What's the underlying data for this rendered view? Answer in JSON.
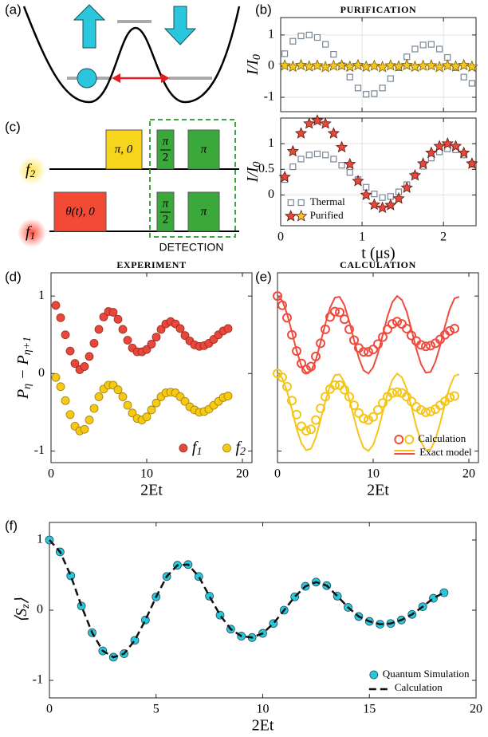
{
  "diagram_a": {
    "label": "(a)"
  },
  "diagram_c": {
    "label": "(c)",
    "rows": [
      {
        "name": [
          "f",
          "2"
        ],
        "pulses": [
          {
            "text": "π, 0"
          },
          {
            "text": {
              "num": "π",
              "den": "2"
            }
          },
          {
            "text": "π"
          }
        ]
      },
      {
        "name": [
          "f",
          "1"
        ],
        "pulses": [
          {
            "text": "θ(t), 0"
          },
          {
            "text": {
              "num": "π",
              "den": "2"
            }
          },
          {
            "text": "π"
          }
        ]
      }
    ],
    "detection": "DETECTION"
  },
  "chart_data": [
    {
      "type": "scatter",
      "panel": "(b)",
      "title": "PURIFICATION",
      "ylabel": [
        "I/I",
        "0"
      ],
      "x": [
        0.05,
        0.15,
        0.25,
        0.35,
        0.45,
        0.55,
        0.65,
        0.75,
        0.85,
        0.95,
        1.05,
        1.15,
        1.25,
        1.35,
        1.45,
        1.55,
        1.65,
        1.75,
        1.85,
        1.95,
        2.05,
        2.15,
        2.25,
        2.35
      ],
      "series": [
        {
          "name": "Thermal",
          "marker": "square",
          "color": "#7a8594",
          "values": [
            0.4,
            0.8,
            0.97,
            1.0,
            0.92,
            0.7,
            0.38,
            0.02,
            -0.35,
            -0.7,
            -0.9,
            -0.88,
            -0.7,
            -0.4,
            -0.05,
            0.3,
            0.55,
            0.68,
            0.7,
            0.55,
            0.28,
            -0.05,
            -0.35,
            -0.55
          ]
        },
        {
          "name": "Purified",
          "marker": "star",
          "color": "#f3c623",
          "edgecolor": "#7a5e0a",
          "values": [
            0.02,
            -0.02,
            0.03,
            -0.01,
            0.02,
            -0.03,
            0.01,
            0.02,
            -0.02,
            0.03,
            -0.02,
            0.01,
            -0.03,
            0.02,
            -0.01,
            0.03,
            -0.02,
            0.01,
            0.02,
            -0.03,
            0.02,
            -0.01,
            0.03,
            -0.02
          ]
        }
      ],
      "xlim": [
        0,
        2.4
      ],
      "ylim": [
        -1.46,
        1.56
      ],
      "xticks": [
        0,
        1,
        2
      ],
      "yticks": [
        -1,
        0,
        1
      ],
      "xtick_labels": false,
      "grid": true
    },
    {
      "type": "scatter",
      "ylabel": [
        "I/I",
        "0"
      ],
      "xlabel": "t (μs)",
      "x": [
        0.05,
        0.15,
        0.25,
        0.35,
        0.45,
        0.55,
        0.65,
        0.75,
        0.85,
        0.95,
        1.05,
        1.15,
        1.25,
        1.35,
        1.45,
        1.55,
        1.65,
        1.75,
        1.85,
        1.95,
        2.05,
        2.15,
        2.25,
        2.35
      ],
      "series": [
        {
          "name": "Thermal",
          "marker": "square",
          "color": "#7a8594",
          "values": [
            0.3,
            0.55,
            0.7,
            0.78,
            0.8,
            0.78,
            0.7,
            0.58,
            0.44,
            0.3,
            0.15,
            0.02,
            -0.05,
            -0.03,
            0.06,
            0.2,
            0.38,
            0.56,
            0.72,
            0.84,
            0.9,
            0.88,
            0.78,
            0.6
          ]
        },
        {
          "name": "Purified",
          "marker": "star",
          "color": "#e8473b",
          "edgecolor": "#5a1a10",
          "values": [
            0.35,
            0.85,
            1.2,
            1.39,
            1.45,
            1.39,
            1.2,
            0.93,
            0.6,
            0.27,
            0,
            -0.19,
            -0.25,
            -0.2,
            -0.07,
            0.14,
            0.38,
            0.61,
            0.82,
            0.95,
            1.0,
            0.95,
            0.82,
            0.61
          ]
        }
      ],
      "xlim": [
        0,
        2.4
      ],
      "ylim": [
        -0.6,
        1.5
      ],
      "xticks": [
        0,
        1,
        2
      ],
      "yticks": [
        0,
        0.5,
        1
      ],
      "grid": true,
      "legend": "lower left",
      "legend_direction": "vertical"
    },
    {
      "type": "scatter",
      "panel": "(d)",
      "title": "EXPERIMENT",
      "ylabel": [
        "P",
        "η",
        " − P",
        "η+1"
      ],
      "xlabel": "2Et",
      "x": [
        0.5,
        1,
        1.5,
        2,
        2.5,
        3,
        3.5,
        4,
        4.5,
        5,
        5.5,
        6,
        6.5,
        7,
        7.5,
        8,
        8.5,
        9,
        9.5,
        10,
        10.5,
        11,
        11.5,
        12,
        12.5,
        13,
        13.5,
        14,
        14.5,
        15,
        15.5,
        16,
        16.5,
        17,
        17.5,
        18,
        18.5
      ],
      "series": [
        {
          "name": [
            "f",
            "1"
          ],
          "marker": "circle",
          "color": "#e8473b",
          "edgecolor": "#9b2a1c",
          "values": [
            0.88,
            0.72,
            0.5,
            0.29,
            0.13,
            0.05,
            0.09,
            0.22,
            0.39,
            0.57,
            0.73,
            0.8,
            0.79,
            0.7,
            0.57,
            0.43,
            0.33,
            0.28,
            0.28,
            0.31,
            0.38,
            0.47,
            0.57,
            0.64,
            0.67,
            0.64,
            0.58,
            0.49,
            0.42,
            0.37,
            0.35,
            0.36,
            0.39,
            0.44,
            0.5,
            0.55,
            0.58
          ]
        },
        {
          "name": [
            "f",
            "2"
          ],
          "marker": "circle",
          "color": "#f6c915",
          "edgecolor": "#a07d08",
          "values": [
            -0.05,
            -0.17,
            -0.35,
            -0.53,
            -0.68,
            -0.74,
            -0.72,
            -0.6,
            -0.45,
            -0.3,
            -0.2,
            -0.15,
            -0.15,
            -0.21,
            -0.3,
            -0.41,
            -0.51,
            -0.58,
            -0.6,
            -0.56,
            -0.47,
            -0.38,
            -0.3,
            -0.25,
            -0.24,
            -0.25,
            -0.3,
            -0.36,
            -0.43,
            -0.47,
            -0.5,
            -0.49,
            -0.46,
            -0.41,
            -0.36,
            -0.31,
            -0.29
          ]
        }
      ],
      "xlim": [
        0,
        21
      ],
      "ylim": [
        -1.15,
        1.3
      ],
      "xticks": [
        0,
        10,
        20
      ],
      "yticks": [
        -1,
        0,
        1
      ],
      "legend": "lower right",
      "legend_direction": "horizontal"
    },
    {
      "type": "scatter",
      "panel": "(e)",
      "title": "CALCULATION",
      "xlabel": "2Et",
      "series": [
        {
          "name": "Calculation",
          "marker": "circle",
          "filled": false,
          "color": "#ef4b3f",
          "x": [
            0,
            0.5,
            1,
            1.5,
            2,
            2.5,
            3,
            3.5,
            4,
            4.5,
            5,
            5.5,
            6,
            6.5,
            7,
            7.5,
            8,
            8.5,
            9,
            9.5,
            10,
            10.5,
            11,
            11.5,
            12,
            12.5,
            13,
            13.5,
            14,
            14.5,
            15,
            15.5,
            16,
            16.5,
            17,
            17.5,
            18,
            18.5
          ],
          "values": [
            1.0,
            0.88,
            0.72,
            0.5,
            0.29,
            0.13,
            0.05,
            0.09,
            0.22,
            0.39,
            0.57,
            0.73,
            0.8,
            0.79,
            0.7,
            0.57,
            0.43,
            0.33,
            0.28,
            0.28,
            0.31,
            0.38,
            0.47,
            0.57,
            0.64,
            0.67,
            0.64,
            0.58,
            0.49,
            0.42,
            0.37,
            0.35,
            0.36,
            0.39,
            0.44,
            0.5,
            0.55,
            0.58
          ]
        },
        {
          "marker": "circle",
          "filled": false,
          "color": "#f5c518",
          "x": [
            0,
            0.5,
            1,
            1.5,
            2,
            2.5,
            3,
            3.5,
            4,
            4.5,
            5,
            5.5,
            6,
            6.5,
            7,
            7.5,
            8,
            8.5,
            9,
            9.5,
            10,
            10.5,
            11,
            11.5,
            12,
            12.5,
            13,
            13.5,
            14,
            14.5,
            15,
            15.5,
            16,
            16.5,
            17,
            17.5,
            18,
            18.5
          ],
          "values": [
            0,
            -0.05,
            -0.17,
            -0.35,
            -0.53,
            -0.68,
            -0.74,
            -0.72,
            -0.6,
            -0.45,
            -0.3,
            -0.2,
            -0.15,
            -0.15,
            -0.21,
            -0.3,
            -0.41,
            -0.51,
            -0.58,
            -0.6,
            -0.56,
            -0.47,
            -0.38,
            -0.3,
            -0.25,
            -0.24,
            -0.25,
            -0.3,
            -0.36,
            -0.43,
            -0.47,
            -0.5,
            -0.49,
            -0.46,
            -0.41,
            -0.36,
            -0.31,
            -0.29
          ]
        },
        {
          "name": "Exact model",
          "line": true,
          "color": "#ef4b3f",
          "x": [
            0,
            0.5,
            1,
            1.5,
            2,
            2.5,
            3,
            3.5,
            4,
            4.5,
            5,
            5.5,
            6,
            6.5,
            7,
            7.5,
            8,
            8.5,
            9,
            9.5,
            10,
            10.5,
            11,
            11.5,
            12,
            12.5,
            13,
            13.5,
            14,
            14.5,
            15,
            15.5,
            16,
            16.5,
            17,
            17.5,
            18,
            18.5,
            19
          ],
          "values": [
            1,
            0.94,
            0.77,
            0.54,
            0.29,
            0.1,
            0.01,
            0.03,
            0.17,
            0.4,
            0.64,
            0.85,
            0.98,
            0.99,
            0.88,
            0.67,
            0.43,
            0.2,
            0.04,
            0,
            0.08,
            0.26,
            0.5,
            0.74,
            0.92,
            1,
            0.95,
            0.8,
            0.57,
            0.32,
            0.12,
            0.01,
            0.02,
            0.15,
            0.36,
            0.61,
            0.83,
            0.97,
            0.99
          ]
        },
        {
          "line": true,
          "color": "#f5c518",
          "x": [
            0,
            0.5,
            1,
            1.5,
            2,
            2.5,
            3,
            3.5,
            4,
            4.5,
            5,
            5.5,
            6,
            6.5,
            7,
            7.5,
            8,
            8.5,
            9,
            9.5,
            10,
            10.5,
            11,
            11.5,
            12,
            12.5,
            13,
            13.5,
            14,
            14.5,
            15,
            15.5,
            16,
            16.5,
            17,
            17.5,
            18,
            18.5,
            19
          ],
          "values": [
            0,
            -0.06,
            -0.23,
            -0.46,
            -0.71,
            -0.9,
            -0.99,
            -0.97,
            -0.83,
            -0.6,
            -0.36,
            -0.15,
            -0.02,
            -0.01,
            -0.12,
            -0.33,
            -0.57,
            -0.8,
            -0.96,
            -1,
            -0.92,
            -0.74,
            -0.5,
            -0.26,
            -0.08,
            0,
            -0.05,
            -0.2,
            -0.43,
            -0.68,
            -0.88,
            -0.99,
            -0.98,
            -0.85,
            -0.64,
            -0.39,
            -0.17,
            -0.03,
            -0.01
          ]
        }
      ],
      "xlim": [
        0,
        21
      ],
      "ylim": [
        -1.15,
        1.3
      ],
      "xticks": [
        0,
        10,
        20
      ],
      "yticks": [
        -1,
        0,
        1
      ],
      "ytick_labels": false,
      "legend": "lower right",
      "legend_direction": "vertical"
    },
    {
      "type": "scatter",
      "panel": "(f)",
      "ylabel": [
        "⟨S",
        "z",
        "⟩"
      ],
      "xlabel": "2Et",
      "x": [
        0,
        0.5,
        1,
        1.5,
        2,
        2.5,
        3,
        3.5,
        4,
        4.5,
        5,
        5.5,
        6,
        6.5,
        7,
        7.5,
        8,
        8.5,
        9,
        9.5,
        10,
        10.5,
        11,
        11.5,
        12,
        12.5,
        13,
        13.5,
        14,
        14.5,
        15,
        15.5,
        16,
        16.5,
        17,
        17.5,
        18,
        18.5
      ],
      "series": [
        {
          "name": "Quantum Simulation",
          "marker": "circle",
          "color": "#29c6dc",
          "edgecolor": "#1d4f5a",
          "values": [
            1,
            0.83,
            0.49,
            0.06,
            -0.32,
            -0.58,
            -0.67,
            -0.62,
            -0.43,
            -0.14,
            0.19,
            0.48,
            0.64,
            0.65,
            0.48,
            0.2,
            -0.07,
            -0.27,
            -0.37,
            -0.39,
            -0.33,
            -0.19,
            0,
            0.19,
            0.34,
            0.4,
            0.35,
            0.2,
            0.04,
            -0.09,
            -0.16,
            -0.2,
            -0.19,
            -0.14,
            -0.06,
            0.05,
            0.17,
            0.25
          ]
        },
        {
          "name": "Calculation",
          "line": true,
          "dash": true,
          "color": "#111111",
          "values": [
            1,
            0.83,
            0.49,
            0.06,
            -0.32,
            -0.58,
            -0.67,
            -0.62,
            -0.43,
            -0.14,
            0.19,
            0.48,
            0.64,
            0.65,
            0.48,
            0.2,
            -0.07,
            -0.27,
            -0.37,
            -0.39,
            -0.33,
            -0.19,
            0,
            0.19,
            0.34,
            0.4,
            0.35,
            0.2,
            0.04,
            -0.09,
            -0.16,
            -0.2,
            -0.19,
            -0.14,
            -0.06,
            0.05,
            0.17,
            0.25
          ]
        }
      ],
      "xlim": [
        0,
        20
      ],
      "ylim": [
        -1.25,
        1.25
      ],
      "xticks": [
        0,
        5,
        10,
        15,
        20
      ],
      "yticks": [
        -1,
        0,
        1
      ],
      "legend": "lower right",
      "legend_direction": "vertical"
    }
  ]
}
